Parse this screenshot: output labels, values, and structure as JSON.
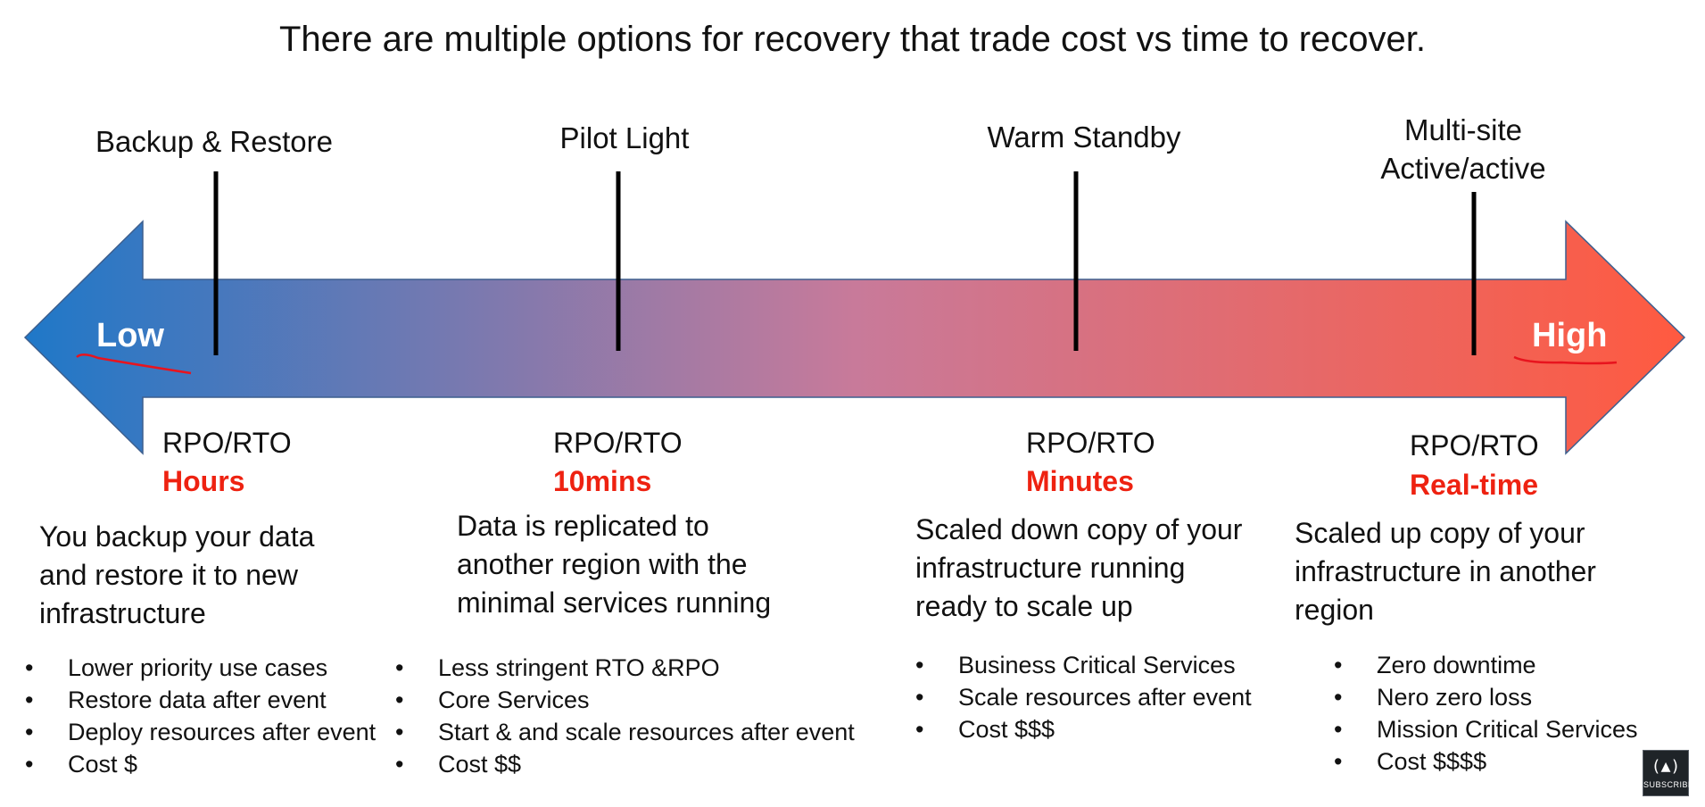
{
  "title": "There are multiple options for recovery that trade cost vs time to recover.",
  "scale": {
    "low_label": "Low",
    "high_label": "High",
    "colors": {
      "low": "#1f78c8",
      "mid": "#c87a9a",
      "high": "#ff5a40",
      "annotation": "#e8141e"
    }
  },
  "options": [
    {
      "name": "Backup & Restore",
      "rpo_label": "RPO/RTO",
      "rpo_value": "Hours",
      "description": "You backup your data and restore it to new infrastructure",
      "bullets": [
        "Lower priority use cases",
        "Restore data after event",
        "Deploy resources after event",
        "Cost $"
      ]
    },
    {
      "name": "Pilot Light",
      "rpo_label": "RPO/RTO",
      "rpo_value": "10mins",
      "description": "Data is replicated to another region with the minimal services running",
      "bullets": [
        "Less stringent RTO &RPO",
        "Core Services",
        "Start & and scale resources after event",
        "Cost $$"
      ]
    },
    {
      "name": "Warm Standby",
      "rpo_label": "RPO/RTO",
      "rpo_value": "Minutes",
      "description": "Scaled down copy of your infrastructure running ready to scale up",
      "bullets": [
        "Business Critical Services",
        "Scale resources after event",
        "Cost $$$"
      ]
    },
    {
      "name": "Multi-site Active/active",
      "rpo_label": "RPO/RTO",
      "rpo_value": "Real-time",
      "description": "Scaled up copy of your infrastructure in another region",
      "bullets": [
        "Zero downtime",
        "Nero zero loss",
        "Mission Critical Services",
        "Cost $$$$"
      ]
    }
  ],
  "badge": {
    "icon": "code-flame-icon",
    "label": "SUBSCRIBE"
  }
}
